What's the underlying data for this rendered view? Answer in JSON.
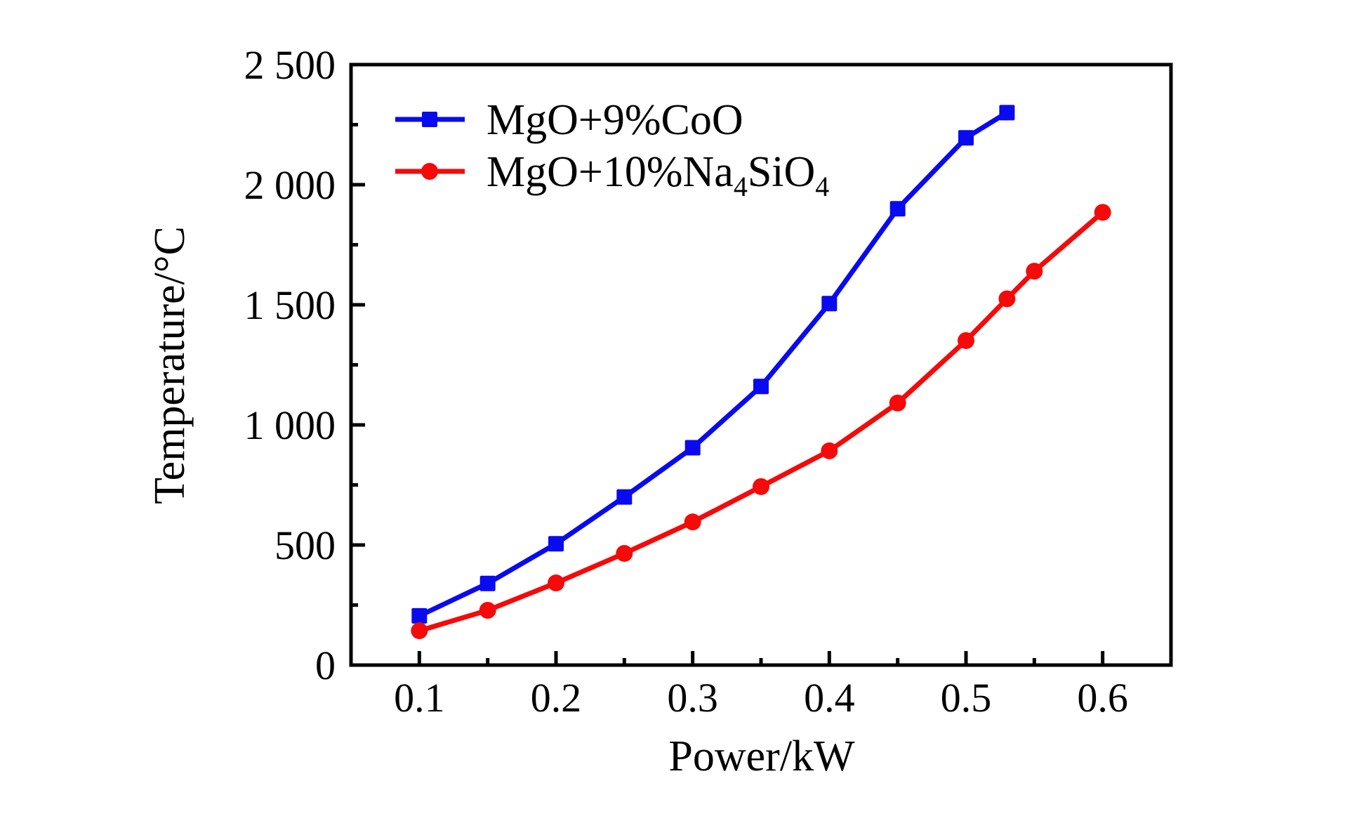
{
  "chart_data": {
    "type": "line",
    "title": "",
    "xlabel": "Power/kW",
    "ylabel": "Temperature/°C",
    "xlim": [
      0.05,
      0.65
    ],
    "ylim": [
      0,
      2500
    ],
    "grid": false,
    "legend_position": "top-left",
    "x_ticks": [
      0.1,
      0.2,
      0.3,
      0.4,
      0.5,
      0.6
    ],
    "x_tick_labels": [
      "0.1",
      "0.2",
      "0.3",
      "0.4",
      "0.5",
      "0.6"
    ],
    "x_minor_ticks": [
      0.15,
      0.25,
      0.35,
      0.45,
      0.55
    ],
    "y_ticks": [
      0,
      500,
      1000,
      1500,
      2000,
      2500
    ],
    "y_tick_labels": [
      "0",
      "500",
      "1 000",
      "1 500",
      "2 000",
      "2 500"
    ],
    "y_minor_ticks": [
      250,
      750,
      1250,
      1750,
      2250
    ],
    "series": [
      {
        "name": "MgO+9%CoO",
        "legend_parts": [
          {
            "t": "MgO+9%CoO",
            "sub": false
          }
        ],
        "color": "#0a0af0",
        "marker": "square",
        "x": [
          0.1,
          0.15,
          0.2,
          0.25,
          0.3,
          0.35,
          0.4,
          0.45,
          0.5,
          0.53
        ],
        "y": [
          205,
          340,
          505,
          700,
          905,
          1160,
          1505,
          1900,
          2195,
          2300
        ]
      },
      {
        "name": "MgO+10%Na4SiO4",
        "legend_parts": [
          {
            "t": "MgO+10%Na",
            "sub": false
          },
          {
            "t": "4",
            "sub": true
          },
          {
            "t": "SiO",
            "sub": false
          },
          {
            "t": "4",
            "sub": true
          }
        ],
        "color": "#f50a0a",
        "marker": "circle",
        "x": [
          0.1,
          0.15,
          0.2,
          0.25,
          0.3,
          0.35,
          0.4,
          0.45,
          0.5,
          0.53,
          0.55,
          0.6
        ],
        "y": [
          143,
          228,
          342,
          465,
          596,
          743,
          892,
          1091,
          1351,
          1525,
          1640,
          1885
        ]
      }
    ]
  }
}
